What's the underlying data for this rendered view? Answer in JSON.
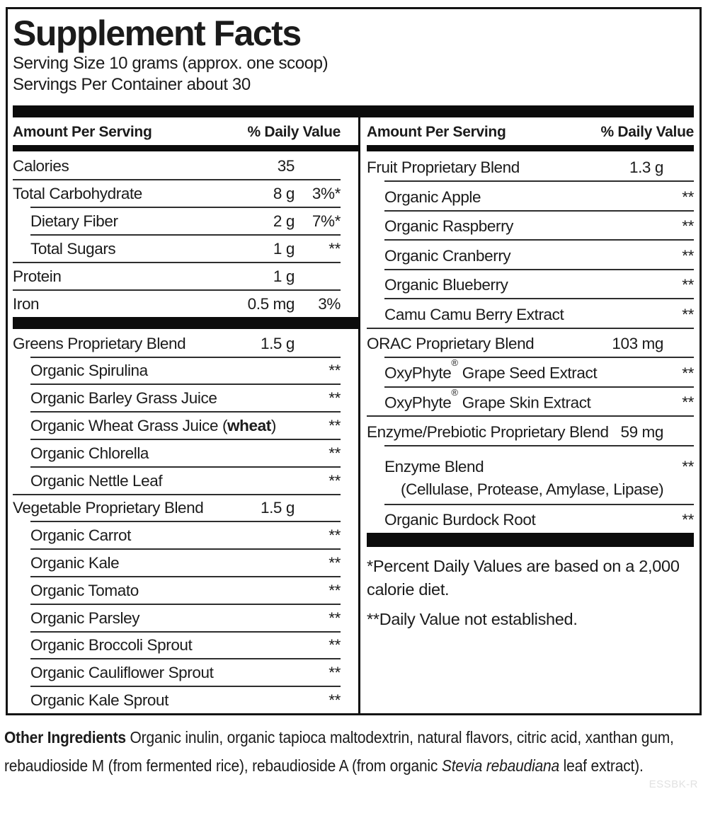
{
  "title": "Supplement Facts",
  "serving": {
    "size": "Serving Size 10 grams (approx. one scoop)",
    "per_container": "Servings Per Container about 30"
  },
  "header": {
    "amount": "Amount Per Serving",
    "daily_value": "% Daily Value"
  },
  "colors": {
    "ink": "#1b1b1b",
    "bar": "#0c0c0c",
    "footer_code_gray": "#e2e2e2"
  },
  "left": {
    "section1": [
      {
        "label": "Calories",
        "amount": "35",
        "dv": ""
      },
      {
        "label": "Total Carbohydrate",
        "amount": "8 g",
        "dv": "3%*"
      },
      {
        "label": "Dietary Fiber",
        "amount": "2 g",
        "dv": "7%*"
      },
      {
        "label": "Total Sugars",
        "amount": "1 g",
        "dv": "**"
      },
      {
        "label": "Protein",
        "amount": "1 g",
        "dv": ""
      },
      {
        "label": "Iron",
        "amount": "0.5 mg",
        "dv": "3%"
      }
    ],
    "section2": [
      {
        "label": "Greens Proprietary Blend",
        "amount": "1.5 g",
        "dv": ""
      },
      {
        "label": "Organic Spirulina",
        "amount": "",
        "dv": "**"
      },
      {
        "label": "Organic Barley Grass Juice",
        "amount": "",
        "dv": "**"
      },
      {
        "label_prefix": "Organic Wheat Grass Juice (",
        "label_bold": "wheat",
        "label_suffix": ")",
        "amount": "",
        "dv": "**"
      },
      {
        "label": "Organic Chlorella",
        "amount": "",
        "dv": "**"
      },
      {
        "label": "Organic Nettle Leaf",
        "amount": "",
        "dv": "**"
      },
      {
        "label": "Vegetable Proprietary Blend",
        "amount": "1.5 g",
        "dv": ""
      },
      {
        "label": "Organic Carrot",
        "amount": "",
        "dv": "**"
      },
      {
        "label": "Organic Kale",
        "amount": "",
        "dv": "**"
      },
      {
        "label": "Organic Tomato",
        "amount": "",
        "dv": "**"
      },
      {
        "label": "Organic Parsley",
        "amount": "",
        "dv": "**"
      },
      {
        "label": "Organic Broccoli Sprout",
        "amount": "",
        "dv": "**"
      },
      {
        "label": "Organic Cauliflower Sprout",
        "amount": "",
        "dv": "**"
      },
      {
        "label": "Organic Kale Sprout",
        "amount": "",
        "dv": "**"
      }
    ]
  },
  "right": {
    "rows": [
      {
        "label": "Fruit Proprietary Blend",
        "amount": "1.3 g",
        "dv": ""
      },
      {
        "label": "Organic Apple",
        "amount": "",
        "dv": "**"
      },
      {
        "label": "Organic Raspberry",
        "amount": "",
        "dv": "**"
      },
      {
        "label": "Organic Cranberry",
        "amount": "",
        "dv": "**"
      },
      {
        "label": "Organic Blueberry",
        "amount": "",
        "dv": "**"
      },
      {
        "label": "Camu Camu Berry Extract",
        "amount": "",
        "dv": "**"
      },
      {
        "label": "ORAC Proprietary Blend",
        "amount": "103 mg",
        "dv": ""
      },
      {
        "brand": "OxyPhyte",
        "reg": "®",
        "rest": " Grape Seed Extract",
        "amount": "",
        "dv": "**"
      },
      {
        "brand": "OxyPhyte",
        "reg": "®",
        "rest": " Grape Skin Extract",
        "amount": "",
        "dv": "**"
      },
      {
        "label": "Enzyme/Prebiotic Proprietary Blend",
        "amount": "59 mg",
        "dv": ""
      },
      {
        "label": "Enzyme Blend",
        "sub": "(Cellulase, Protease, Amylase, Lipase)",
        "amount": "",
        "dv": "**"
      },
      {
        "label": "Organic Burdock Root",
        "amount": "",
        "dv": "**"
      }
    ],
    "footnotes": {
      "dv_note": "*Percent Daily Values are based on a 2,000 calorie diet.",
      "not_established": "**Daily Value not established."
    }
  },
  "other_ingredients": {
    "lead": "Other Ingredients ",
    "body1": "Organic inulin, organic tapioca maltodextrin, natural flavors, citric acid, xanthan gum, rebaudioside M (from fermented rice), rebaudioside A (from organic ",
    "italic": "Stevia rebaudiana",
    "body2": " leaf extract)."
  },
  "footer_code": "ESSBK-R"
}
